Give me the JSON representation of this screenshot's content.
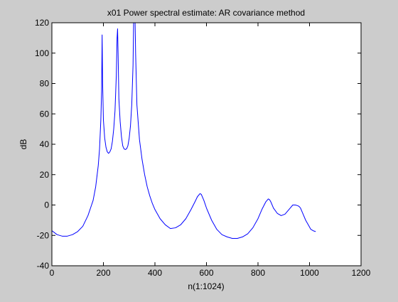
{
  "chart_data": {
    "type": "line",
    "title": "x01 Power spectral estimate: AR covariance method",
    "xlabel": "n(1:1024)",
    "ylabel": "dB",
    "xlim": [
      0,
      1200
    ],
    "ylim": [
      -40,
      120
    ],
    "xticks": [
      0,
      200,
      400,
      600,
      800,
      1000,
      1200
    ],
    "yticks": [
      -40,
      -20,
      0,
      20,
      40,
      60,
      80,
      100,
      120
    ],
    "grid": false,
    "line_color": "#0000ff",
    "background_color": "#cccccc",
    "axes_color": "#ffffff",
    "series": [
      {
        "x": [
          1,
          20,
          40,
          60,
          80,
          100,
          120,
          140,
          160,
          170,
          180,
          185,
          190,
          193,
          195,
          197,
          200,
          205,
          210,
          215,
          220,
          225,
          230,
          235,
          240,
          245,
          250,
          253,
          255,
          257,
          260,
          265,
          270,
          275,
          280,
          285,
          290,
          295,
          300,
          305,
          310,
          315,
          318,
          320,
          322,
          325,
          330,
          340,
          350,
          360,
          370,
          380,
          390,
          400,
          420,
          440,
          460,
          480,
          500,
          520,
          540,
          555,
          565,
          575,
          580,
          590,
          600,
          620,
          640,
          660,
          680,
          700,
          720,
          740,
          760,
          780,
          800,
          815,
          830,
          840,
          845,
          850,
          860,
          875,
          890,
          905,
          915,
          925,
          935,
          945,
          955,
          960,
          965,
          975,
          985,
          995,
          1005,
          1015,
          1024
        ],
        "y": [
          -17,
          -19.5,
          -20.5,
          -20.5,
          -19.5,
          -17.5,
          -14,
          -7,
          3,
          12,
          26,
          37,
          56,
          75,
          112,
          80,
          56,
          44,
          38,
          35,
          34,
          35,
          37,
          42,
          50,
          62,
          85,
          110,
          116,
          100,
          70,
          55,
          45,
          39,
          37,
          36.5,
          37,
          39,
          44,
          52,
          66,
          92,
          130,
          130,
          130,
          100,
          66,
          43,
          30,
          20,
          12,
          6,
          1,
          -3,
          -9,
          -13,
          -15.5,
          -15,
          -13,
          -9,
          -3,
          2,
          5.5,
          7.5,
          7,
          3,
          -2,
          -10,
          -16,
          -19.5,
          -21,
          -22,
          -22,
          -21,
          -19,
          -15,
          -9,
          -3,
          2,
          4,
          3.5,
          2,
          -2,
          -5.5,
          -7,
          -6,
          -4,
          -2,
          0,
          0,
          -0.5,
          -1,
          -2,
          -6,
          -10,
          -13,
          -16,
          -17,
          -17.5
        ]
      }
    ]
  }
}
